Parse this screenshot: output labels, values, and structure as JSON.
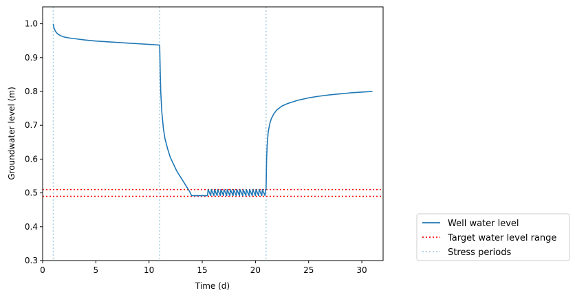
{
  "chart_data": {
    "type": "line",
    "title": "",
    "xlabel": "Time (d)",
    "ylabel": "Groundwater level (m)",
    "xlim": [
      0,
      32
    ],
    "ylim": [
      0.3,
      1.05
    ],
    "xticks": [
      0,
      5,
      10,
      15,
      20,
      25,
      30
    ],
    "xtick_labels": [
      "0",
      "5",
      "10",
      "15",
      "20",
      "25",
      "30"
    ],
    "yticks": [
      0.3,
      0.4,
      0.5,
      0.6,
      0.7,
      0.8,
      0.9,
      1.0
    ],
    "ytick_labels": [
      "0.3",
      "0.4",
      "0.5",
      "0.6",
      "0.7",
      "0.8",
      "0.9",
      "1.0"
    ],
    "grid": false,
    "legend_position": "outside-lower-right",
    "series": [
      {
        "name": "Well water level",
        "style": "solid",
        "color": "#1f77b4",
        "x": [
          1.0,
          1.05,
          1.1,
          1.2,
          1.35,
          1.5,
          1.75,
          2.0,
          2.5,
          3.0,
          4.0,
          5.0,
          6.0,
          7.0,
          8.0,
          9.0,
          10.0,
          11.0,
          11.0,
          11.05,
          11.1,
          11.2,
          11.35,
          11.5,
          11.75,
          12.0,
          12.3,
          12.6,
          13.0,
          13.4,
          13.8,
          14.0,
          14.5,
          15.0,
          15.5,
          15.55,
          15.8,
          15.85,
          16.1,
          16.15,
          16.4,
          16.45,
          16.7,
          16.75,
          17.0,
          17.05,
          17.3,
          17.35,
          17.6,
          17.65,
          17.9,
          17.95,
          18.2,
          18.25,
          18.5,
          18.55,
          18.8,
          18.85,
          19.1,
          19.15,
          19.4,
          19.45,
          19.7,
          19.75,
          20.0,
          20.05,
          20.3,
          20.35,
          20.6,
          20.65,
          20.9,
          20.95,
          21.0,
          21.05,
          21.1,
          21.2,
          21.35,
          21.5,
          21.75,
          22.0,
          22.5,
          23.0,
          24.0,
          25.0,
          26.0,
          27.0,
          28.0,
          29.0,
          30.0,
          31.0
        ],
        "y": [
          1.0,
          0.99,
          0.985,
          0.978,
          0.972,
          0.968,
          0.964,
          0.961,
          0.958,
          0.956,
          0.952,
          0.949,
          0.947,
          0.945,
          0.943,
          0.941,
          0.939,
          0.937,
          0.937,
          0.86,
          0.8,
          0.74,
          0.69,
          0.66,
          0.63,
          0.605,
          0.585,
          0.565,
          0.545,
          0.525,
          0.505,
          0.492,
          0.492,
          0.492,
          0.492,
          0.51,
          0.492,
          0.51,
          0.492,
          0.51,
          0.492,
          0.51,
          0.492,
          0.51,
          0.492,
          0.51,
          0.492,
          0.51,
          0.492,
          0.51,
          0.492,
          0.51,
          0.492,
          0.51,
          0.492,
          0.51,
          0.492,
          0.51,
          0.492,
          0.51,
          0.492,
          0.51,
          0.492,
          0.51,
          0.492,
          0.51,
          0.492,
          0.51,
          0.492,
          0.51,
          0.492,
          0.51,
          0.51,
          0.6,
          0.64,
          0.68,
          0.705,
          0.72,
          0.735,
          0.745,
          0.757,
          0.764,
          0.774,
          0.781,
          0.786,
          0.79,
          0.793,
          0.796,
          0.798,
          0.8
        ]
      },
      {
        "name": "Target water level range",
        "style": "dotted",
        "color": "#ff0000",
        "levels": [
          0.51,
          0.49
        ]
      },
      {
        "name": "Stress periods",
        "style": "dotted",
        "color": "#a6cee3",
        "x_lines": [
          1,
          11,
          21
        ]
      }
    ]
  }
}
